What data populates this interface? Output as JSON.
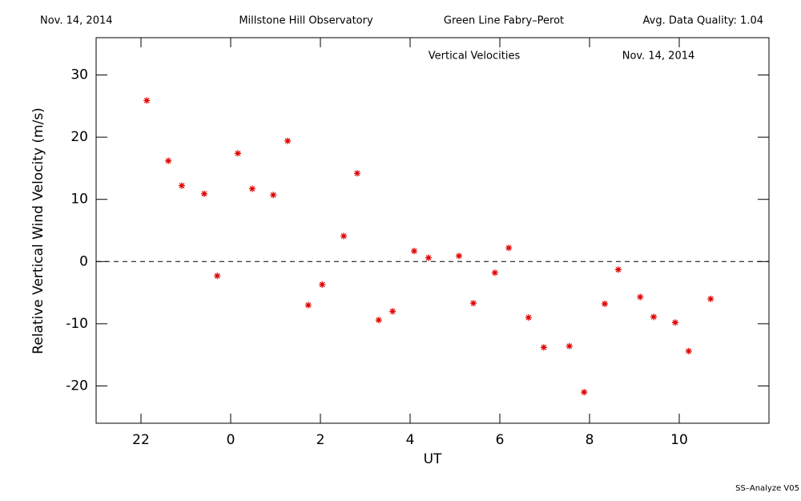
{
  "header": {
    "date": "Nov. 14, 2014",
    "observatory": "Millstone Hill Observatory",
    "instrument": "Green Line Fabry–Perot",
    "quality": "Avg. Data Quality: 1.04"
  },
  "footer": "SS–Analyze V05",
  "chart_data": {
    "type": "scatter",
    "title": "Vertical Velocities",
    "subtitle": "Nov. 14, 2014",
    "xlabel": "UT",
    "ylabel": "Relative Vertical Wind Velocity (m/s)",
    "xlim": [
      21,
      36
    ],
    "ylim": [
      -26,
      36
    ],
    "xticks": [
      22,
      {
        "value": 24,
        "label": "0"
      },
      {
        "value": 26,
        "label": "2"
      },
      {
        "value": 28,
        "label": "4"
      },
      {
        "value": 30,
        "label": "6"
      },
      {
        "value": 32,
        "label": "8"
      },
      {
        "value": 34,
        "label": "10"
      }
    ],
    "yticks": [
      -20,
      -10,
      0,
      10,
      20,
      30
    ],
    "hline": 0,
    "color": "#e00000",
    "x": [
      22.13,
      22.61,
      22.91,
      23.41,
      23.7,
      24.16,
      24.48,
      24.95,
      25.27,
      25.73,
      26.04,
      26.52,
      26.82,
      27.3,
      27.61,
      28.09,
      28.41,
      29.09,
      29.41,
      29.89,
      30.2,
      30.64,
      30.98,
      31.55,
      31.88,
      32.34,
      32.64,
      33.13,
      33.43,
      33.91,
      34.21,
      34.7
    ],
    "values": [
      25.9,
      16.2,
      12.2,
      10.9,
      -2.3,
      17.4,
      11.7,
      10.7,
      19.4,
      -7.0,
      -3.7,
      4.1,
      14.2,
      -9.4,
      -8.0,
      1.7,
      0.6,
      0.9,
      -6.7,
      -1.8,
      2.2,
      -9.0,
      -13.8,
      -13.6,
      -21.0,
      -6.8,
      -1.3,
      -5.7,
      -8.9,
      -9.8,
      -14.4,
      -6.0
    ]
  }
}
